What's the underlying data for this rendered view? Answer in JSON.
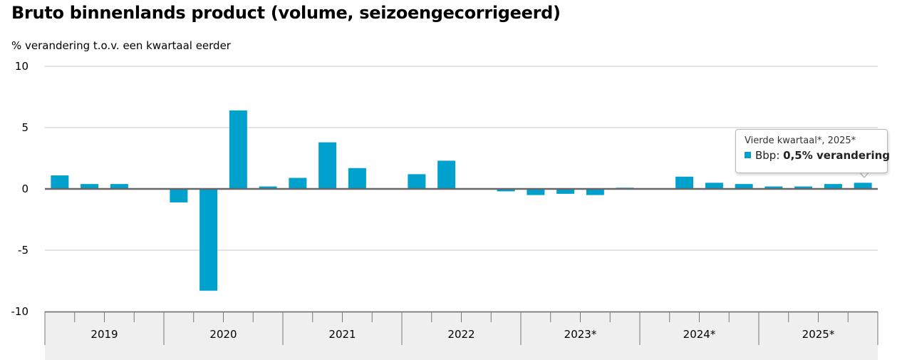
{
  "header": {
    "title": "Bruto binnenlands product (volume, seizoengecorrigeerd)",
    "subtitle": "% verandering t.o.v. een kwartaal eerder"
  },
  "colors": {
    "bar": "#00a1cd",
    "grid": "#c8c8c8",
    "zero_line": "#666666",
    "axis_band": "#efefef"
  },
  "tooltip": {
    "header": "Vierde kwartaal*, 2025*",
    "series": "Bbp",
    "separator": ": ",
    "value": "0,5% verandering"
  },
  "chart_data": {
    "type": "bar",
    "ylim": [
      -10,
      10
    ],
    "yticks": [
      10,
      5,
      0,
      -5,
      -10
    ],
    "grid": true,
    "legend": "none",
    "years": [
      "2019",
      "2020",
      "2021",
      "2022",
      "2023*",
      "2024*",
      "2025*"
    ],
    "quarters_per_year": 4,
    "values": [
      1.1,
      0.4,
      0.4,
      0.0,
      -1.1,
      -8.3,
      6.4,
      0.2,
      0.9,
      3.8,
      1.7,
      0.0,
      1.2,
      2.3,
      0.0,
      -0.2,
      -0.5,
      -0.4,
      -0.5,
      0.1,
      0.0,
      1.0,
      0.5,
      0.4,
      0.2,
      0.2,
      0.4,
      0.5
    ]
  }
}
